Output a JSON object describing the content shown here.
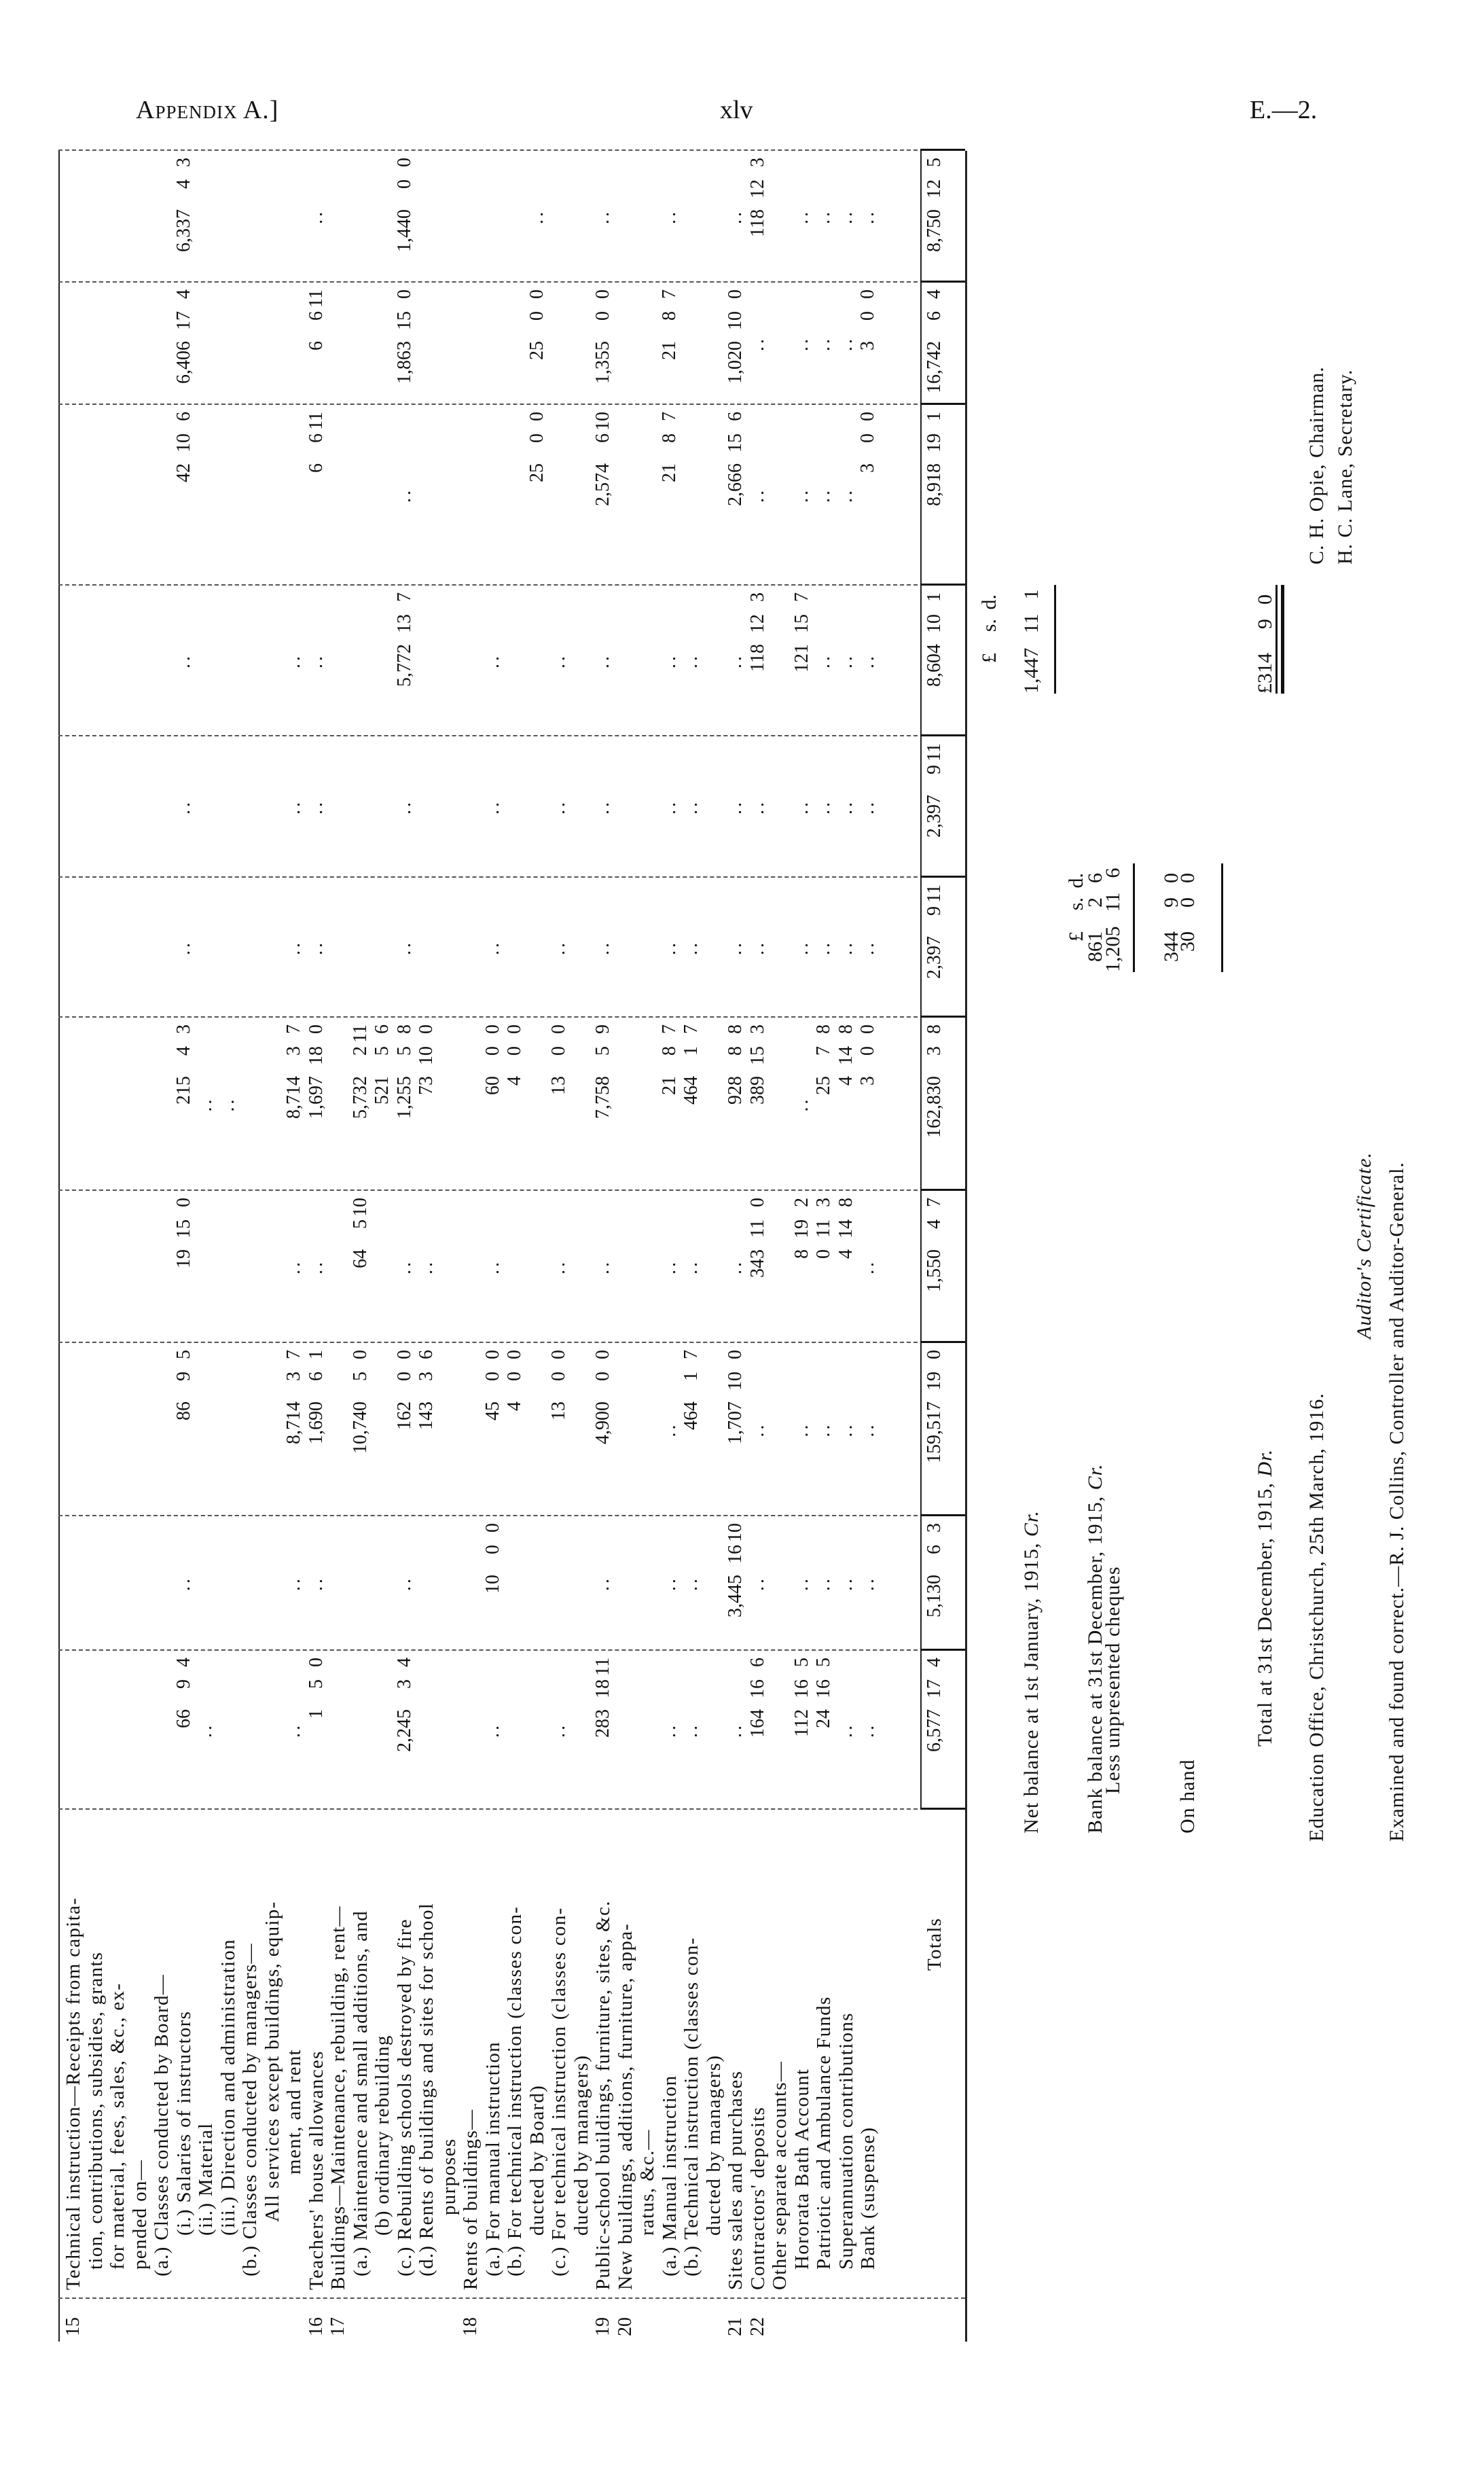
{
  "header": {
    "left": "Appendix A.]",
    "center": "xlv",
    "right": "E.—2."
  },
  "table": {
    "lines": [
      {
        "num": "15",
        "label": "Technical instruction—Receipts from capita-"
      },
      {
        "label": "tion, contributions, subsidies, grants"
      },
      {
        "label": "for material, fees, sales, &c., ex-"
      },
      {
        "label": "pended on—"
      },
      {
        "label": "(a.) Classes conducted by Board—"
      },
      {
        "label": "(i.) Salaries of instructors",
        "cells": {
          "0": [
            "66",
            "9",
            "4"
          ],
          "1": "..",
          "2": [
            "86",
            "9",
            "5"
          ],
          "3": [
            "19",
            "15",
            "0"
          ],
          "4": [
            "215",
            "4",
            "3"
          ],
          "5": "..",
          "6": "..",
          "7": "..",
          "8": [
            "42",
            "10",
            "6"
          ],
          "9": [
            "6,406",
            "17",
            "4"
          ],
          "10": [
            "6,337",
            "4",
            "3"
          ]
        }
      },
      {
        "label": "(ii.) Material",
        "cells": {
          "0": "..",
          "4": ".."
        }
      },
      {
        "label": "(iii.) Direction and administration",
        "cells": {
          "4": ".."
        }
      },
      {
        "label": "(b.) Classes conducted by managers—"
      },
      {
        "label": "All services except buildings, equip-"
      },
      {
        "label": "ment, and rent",
        "cells": {
          "0": "..",
          "1": "..",
          "2": [
            "8,714",
            "3",
            "7"
          ],
          "3": "..",
          "4": [
            "8,714",
            "3",
            "7"
          ],
          "5": "..",
          "6": "..",
          "7": ".."
        }
      },
      {
        "num": "16",
        "label": "Teachers' house allowances",
        "cells": {
          "0": [
            "1",
            "5",
            "0"
          ],
          "1": "..",
          "2": [
            "1,690",
            "6",
            "1"
          ],
          "3": "..",
          "4": [
            "1,697",
            "18",
            "0"
          ],
          "5": "..",
          "6": "..",
          "7": "..",
          "8": [
            "6",
            "6",
            "11"
          ],
          "9": [
            "6",
            "6",
            "11"
          ],
          "10": ".."
        }
      },
      {
        "num": "17",
        "label": "Buildings—Maintenance, rebuilding, rent—"
      },
      {
        "label": "(a.) Maintenance and small additions, and",
        "cells": {
          "2": [
            "10,740",
            "5",
            "0"
          ],
          "3": [
            "64",
            "5",
            "10"
          ],
          "4": [
            "5,732",
            "2",
            "11"
          ]
        }
      },
      {
        "label": "(b) ordinary rebuilding",
        "cells": {
          "4": [
            "521",
            "5",
            "6"
          ]
        }
      },
      {
        "label": "(c.) Rebuilding schools destroyed by fire",
        "cells": {
          "0": [
            "2,245",
            "3",
            "4"
          ],
          "1": "..",
          "2": [
            "162",
            "0",
            "0"
          ],
          "3": "..",
          "4": [
            "1,255",
            "5",
            "8"
          ],
          "5": "..",
          "6": "..",
          "7": [
            "5,772",
            "13",
            "7"
          ],
          "8": "..",
          "9": [
            "1,863",
            "15",
            "0"
          ],
          "10": [
            "1,440",
            "0",
            "0"
          ]
        }
      },
      {
        "label": "(d.) Rents of buildings and sites for school",
        "cells": {
          "2": [
            "143",
            "3",
            "6"
          ],
          "3": "..",
          "4": [
            "73",
            "10",
            "0"
          ]
        }
      },
      {
        "label": "purposes"
      },
      {
        "num": "18",
        "label": "Rents of buildings—"
      },
      {
        "label": "(a.) For manual instruction",
        "cells": {
          "0": "..",
          "1": [
            "10",
            "0",
            "0"
          ],
          "2": [
            "45",
            "0",
            "0"
          ],
          "3": "..",
          "4": [
            "60",
            "0",
            "0"
          ],
          "5": "..",
          "6": "..",
          "7": ".."
        }
      },
      {
        "label": "(b.) For technical instruction (classes con-",
        "cells": {
          "2": [
            "4",
            "0",
            "0"
          ],
          "4": [
            "4",
            "0",
            "0"
          ]
        }
      },
      {
        "label": "ducted by Board)",
        "cells": {
          "8": [
            "25",
            "0",
            "0"
          ],
          "9": [
            "25",
            "0",
            "0"
          ],
          "10": ".."
        }
      },
      {
        "label": "(c.) For technical instruction (classes con-",
        "cells": {
          "0": "..",
          "2": [
            "13",
            "0",
            "0"
          ],
          "3": "..",
          "4": [
            "13",
            "0",
            "0"
          ],
          "5": "..",
          "6": "..",
          "7": ".."
        }
      },
      {
        "label": "ducted by managers)"
      },
      {
        "num": "19",
        "label": "Public-school buildings, furniture, sites, &c.",
        "cells": {
          "0": [
            "283",
            "18",
            "11"
          ],
          "1": "..",
          "2": [
            "4,900",
            "0",
            "0"
          ],
          "3": "..",
          "4": [
            "7,758",
            "5",
            "9"
          ],
          "5": "..",
          "6": "..",
          "7": "..",
          "8": [
            "2,574",
            "6",
            "10"
          ],
          "9": [
            "1,355",
            "0",
            "0"
          ],
          "10": ".."
        }
      },
      {
        "num": "20",
        "label": "New buildings, additions, furniture, appa-"
      },
      {
        "label": "ratus, &c.—"
      },
      {
        "label": "(a.) Manual instruction",
        "cells": {
          "0": "..",
          "1": "..",
          "2": "..",
          "3": "..",
          "4": [
            "21",
            "8",
            "7"
          ],
          "5": "..",
          "6": "..",
          "7": "..",
          "8": [
            "21",
            "8",
            "7"
          ],
          "9": [
            "21",
            "8",
            "7"
          ],
          "10": ".."
        }
      },
      {
        "label": "(b.) Technical instruction (classes con-",
        "cells": {
          "0": "..",
          "1": "..",
          "2": [
            "464",
            "1",
            "7"
          ],
          "3": "..",
          "4": [
            "464",
            "1",
            "7"
          ],
          "5": "..",
          "6": "..",
          "7": ".."
        }
      },
      {
        "label": "ducted by managers)"
      },
      {
        "num": "21",
        "label": "Sites sales and purchases",
        "cells": {
          "0": "..",
          "1": [
            "3,445",
            "16",
            "10"
          ],
          "2": [
            "1,707",
            "10",
            "0"
          ],
          "3": "..",
          "4": [
            "928",
            "8",
            "8"
          ],
          "5": "..",
          "6": "..",
          "7": "..",
          "8": [
            "2,666",
            "15",
            "6"
          ],
          "9": [
            "1,020",
            "10",
            "0"
          ],
          "10": ".."
        }
      },
      {
        "num": "22",
        "label": "Contractors' deposits",
        "cells": {
          "0": [
            "164",
            "16",
            "6"
          ],
          "1": "..",
          "2": "..",
          "3": [
            "343",
            "11",
            "0"
          ],
          "4": [
            "389",
            "15",
            "3"
          ],
          "5": "..",
          "6": "..",
          "7": [
            "118",
            "12",
            "3"
          ],
          "8": "..",
          "9": "..",
          "10": [
            "118",
            "12",
            "3"
          ]
        }
      },
      {
        "label": "Other separate accounts—"
      },
      {
        "label": "Hororata Bath Account",
        "cells": {
          "0": [
            "112",
            "16",
            "5"
          ],
          "1": "..",
          "2": "..",
          "3": [
            "8",
            "19",
            "2"
          ],
          "4": "..",
          "5": "..",
          "6": "..",
          "7": [
            "121",
            "15",
            "7"
          ],
          "8": "..",
          "9": "..",
          "10": ".."
        }
      },
      {
        "label": "Patriotic and Ambulance Funds",
        "cells": {
          "0": [
            "24",
            "16",
            "5"
          ],
          "1": "..",
          "2": "..",
          "3": [
            "0",
            "11",
            "3"
          ],
          "4": [
            "25",
            "7",
            "8"
          ],
          "5": "..",
          "6": "..",
          "7": "..",
          "8": "..",
          "9": "..",
          "10": ".."
        }
      },
      {
        "label": "Superannuation contributions",
        "cells": {
          "0": "..",
          "1": "..",
          "2": "..",
          "3": [
            "4",
            "14",
            "8"
          ],
          "4": [
            "4",
            "14",
            "8"
          ],
          "5": "..",
          "6": "..",
          "7": "..",
          "8": "..",
          "9": "..",
          "10": ".."
        }
      },
      {
        "label": "Bank (suspense)",
        "cells": {
          "0": "..",
          "1": "..",
          "2": "..",
          "3": "..",
          "4": [
            "3",
            "0",
            "0"
          ],
          "5": "..",
          "6": "..",
          "7": "..",
          "8": [
            "3",
            "0",
            "0"
          ],
          "9": [
            "3",
            "0",
            "0"
          ],
          "10": ".."
        }
      },
      {
        "label": ""
      },
      {
        "label": ""
      },
      {
        "label": "Totals",
        "total": true,
        "cells": {
          "0": [
            "6,577",
            "17",
            "4"
          ],
          "1": [
            "5,130",
            "6",
            "3"
          ],
          "2": [
            "159,517",
            "19",
            "0"
          ],
          "3": [
            "1,550",
            "4",
            "7"
          ],
          "4": [
            "162,830",
            "3",
            "8"
          ],
          "5": [
            "2,397",
            "9",
            "11"
          ],
          "6": [
            "2,397",
            "9",
            "11"
          ],
          "7": [
            "8,604",
            "10",
            "1"
          ],
          "8": [
            "8,918",
            "19",
            "1"
          ],
          "9": [
            "16,742",
            "6",
            "4"
          ],
          "10": [
            "8,750",
            "12",
            "5"
          ]
        }
      }
    ]
  },
  "balance": {
    "currency_header": [
      "£",
      "s.",
      "d."
    ],
    "net_balance": {
      "label": "Net balance at 1st January, 1915, ",
      "label_italic": "Cr.",
      "amount": [
        "1,447",
        "11",
        "1"
      ]
    },
    "bank_balance": {
      "label": "Bank balance at 31st December, 1915, ",
      "label_italic": "Cr.",
      "amount": [
        "861",
        "2",
        "6"
      ]
    },
    "unpresented": {
      "label": "Less unpresented cheques",
      "amount": [
        "1,205",
        "11",
        "6"
      ]
    },
    "difference": {
      "amount": [
        "344",
        "9",
        "0"
      ]
    },
    "on_hand": {
      "label": "On hand",
      "amount": [
        "30",
        "0",
        "0"
      ]
    },
    "total": {
      "label": "Total at 31st December, 1915, ",
      "label_italic": "Dr.",
      "amount": [
        "£314",
        "9",
        "0"
      ]
    }
  },
  "footer": {
    "date_line": "Education Office, Christchurch, 25th March, 1916.",
    "chairman": "C. H. Opie, Chairman.",
    "secretary": "H. C. Lane, Secretary.",
    "certificate_title": "Auditor's Certificate.",
    "certificate_text": "Examined and found correct.—R. J. Collins, Controller and Auditor-General."
  }
}
